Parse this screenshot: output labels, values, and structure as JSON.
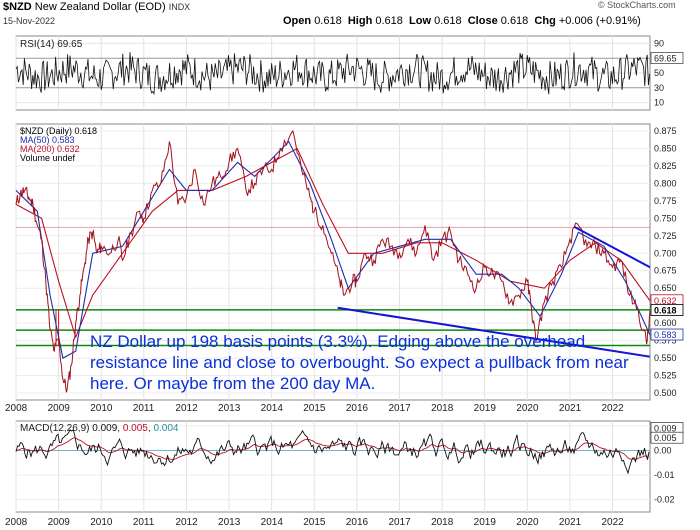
{
  "header": {
    "symbol": "$NZD",
    "name": "New Zealand Dollar (EOD)",
    "exchange": "INDX",
    "date": "15-Nov-2022",
    "open_label": "Open",
    "open": "0.618",
    "high_label": "High",
    "high": "0.618",
    "low_label": "Low",
    "low": "0.618",
    "close_label": "Close",
    "close": "0.618",
    "chg_label": "Chg",
    "chg": "+0.006 (+0.91%)",
    "watermark": "© StockCharts.com"
  },
  "rsi_panel": {
    "legend": "RSI(14) 69.65",
    "value_tag": "69.65",
    "ticks": [
      "90",
      "70",
      "50",
      "30",
      "10"
    ]
  },
  "price_panel": {
    "legend": [
      {
        "text": "$NZD (Daily) 0.618",
        "color": "#000000"
      },
      {
        "text": "MA(50) 0.583",
        "color": "#1a2fb0"
      },
      {
        "text": "MA(200) 0.632",
        "color": "#c0102a"
      },
      {
        "text": "Volume undef",
        "color": "#000000"
      }
    ],
    "ticks": [
      "0.875",
      "0.850",
      "0.825",
      "0.800",
      "0.775",
      "0.750",
      "0.725",
      "0.700",
      "0.675",
      "0.650",
      "0.625",
      "0.600",
      "0.575",
      "0.550",
      "0.525",
      "0.500"
    ],
    "tags": {
      "ma200": "0.632",
      "price": "0.618",
      "ma50": "0.583"
    }
  },
  "annotation": "NZ Dollar up 198 basis points (3.3%). Edging above the overhead resistance line and close to overbought. So expect a pullback from near here. Or maybe from the 200 day MA.",
  "macd_panel": {
    "legend_prefix": "MACD(12,26,9)",
    "macd_value": "0.009",
    "signal_value": "0.005",
    "hist_value": "0.004",
    "ticks": [
      "0.01",
      "0.00",
      "-0.01",
      "-0.02"
    ],
    "tags": {
      "macd": "0.009",
      "signal": "0.005"
    }
  },
  "x_axis_labels": [
    "2008",
    "2009",
    "2010",
    "2011",
    "2012",
    "2013",
    "2014",
    "2015",
    "2016",
    "2017",
    "2018",
    "2019",
    "2020",
    "2021",
    "2022"
  ],
  "colors": {
    "price": "#a0101c",
    "ma50": "#1a2fb0",
    "ma200": "#c0102a",
    "support": "#0a8a0a",
    "trendline": "#1414d8",
    "annotation": "#0b2fd8"
  },
  "chart_data": [
    {
      "type": "line",
      "title": "RSI(14)",
      "ylim": [
        0,
        100
      ],
      "series": [
        {
          "name": "RSI(14)",
          "values": [
            69.65
          ]
        }
      ]
    },
    {
      "type": "line",
      "title": "$NZD (Daily)",
      "x_unit": "year",
      "ylim": [
        0.49,
        0.885
      ],
      "series": [
        {
          "name": "$NZD (Daily)",
          "color": "#a0101c",
          "points": [
            [
              2008.0,
              0.77
            ],
            [
              2008.1,
              0.785
            ],
            [
              2008.2,
              0.79
            ],
            [
              2008.3,
              0.78
            ],
            [
              2008.4,
              0.77
            ],
            [
              2008.5,
              0.74
            ],
            [
              2008.6,
              0.72
            ],
            [
              2008.7,
              0.66
            ],
            [
              2008.8,
              0.59
            ],
            [
              2008.9,
              0.56
            ],
            [
              2009.0,
              0.58
            ],
            [
              2009.1,
              0.52
            ],
            [
              2009.2,
              0.505
            ],
            [
              2009.3,
              0.54
            ],
            [
              2009.4,
              0.6
            ],
            [
              2009.5,
              0.64
            ],
            [
              2009.6,
              0.68
            ],
            [
              2009.7,
              0.72
            ],
            [
              2009.8,
              0.73
            ],
            [
              2009.9,
              0.7
            ],
            [
              2010.0,
              0.71
            ],
            [
              2010.2,
              0.7
            ],
            [
              2010.4,
              0.72
            ],
            [
              2010.5,
              0.69
            ],
            [
              2010.7,
              0.73
            ],
            [
              2010.9,
              0.76
            ],
            [
              2011.0,
              0.75
            ],
            [
              2011.2,
              0.79
            ],
            [
              2011.4,
              0.8
            ],
            [
              2011.6,
              0.86
            ],
            [
              2011.8,
              0.77
            ],
            [
              2012.0,
              0.78
            ],
            [
              2012.2,
              0.82
            ],
            [
              2012.4,
              0.77
            ],
            [
              2012.6,
              0.8
            ],
            [
              2012.8,
              0.81
            ],
            [
              2013.0,
              0.83
            ],
            [
              2013.2,
              0.85
            ],
            [
              2013.4,
              0.79
            ],
            [
              2013.6,
              0.8
            ],
            [
              2013.8,
              0.82
            ],
            [
              2014.0,
              0.82
            ],
            [
              2014.2,
              0.85
            ],
            [
              2014.5,
              0.875
            ],
            [
              2014.7,
              0.82
            ],
            [
              2014.9,
              0.78
            ],
            [
              2015.0,
              0.76
            ],
            [
              2015.2,
              0.74
            ],
            [
              2015.4,
              0.7
            ],
            [
              2015.6,
              0.66
            ],
            [
              2015.7,
              0.64
            ],
            [
              2015.9,
              0.66
            ],
            [
              2016.0,
              0.66
            ],
            [
              2016.2,
              0.7
            ],
            [
              2016.4,
              0.69
            ],
            [
              2016.6,
              0.72
            ],
            [
              2016.8,
              0.71
            ],
            [
              2017.0,
              0.7
            ],
            [
              2017.2,
              0.72
            ],
            [
              2017.4,
              0.7
            ],
            [
              2017.6,
              0.74
            ],
            [
              2017.8,
              0.69
            ],
            [
              2018.0,
              0.72
            ],
            [
              2018.2,
              0.73
            ],
            [
              2018.4,
              0.69
            ],
            [
              2018.6,
              0.67
            ],
            [
              2018.8,
              0.65
            ],
            [
              2019.0,
              0.68
            ],
            [
              2019.2,
              0.67
            ],
            [
              2019.4,
              0.66
            ],
            [
              2019.6,
              0.63
            ],
            [
              2019.8,
              0.64
            ],
            [
              2020.0,
              0.66
            ],
            [
              2020.1,
              0.62
            ],
            [
              2020.2,
              0.575
            ],
            [
              2020.4,
              0.63
            ],
            [
              2020.6,
              0.66
            ],
            [
              2020.8,
              0.68
            ],
            [
              2021.0,
              0.72
            ],
            [
              2021.2,
              0.74
            ],
            [
              2021.4,
              0.71
            ],
            [
              2021.6,
              0.71
            ],
            [
              2021.8,
              0.7
            ],
            [
              2022.0,
              0.68
            ],
            [
              2022.2,
              0.69
            ],
            [
              2022.4,
              0.64
            ],
            [
              2022.6,
              0.62
            ],
            [
              2022.8,
              0.57
            ],
            [
              2022.88,
              0.618
            ]
          ]
        },
        {
          "name": "MA(50)",
          "color": "#1a2fb0",
          "points": [
            [
              2008.0,
              0.79
            ],
            [
              2008.5,
              0.76
            ],
            [
              2008.8,
              0.64
            ],
            [
              2009.1,
              0.55
            ],
            [
              2009.4,
              0.56
            ],
            [
              2009.8,
              0.7
            ],
            [
              2010.5,
              0.71
            ],
            [
              2011.0,
              0.76
            ],
            [
              2011.6,
              0.82
            ],
            [
              2012.0,
              0.79
            ],
            [
              2012.6,
              0.79
            ],
            [
              2013.2,
              0.83
            ],
            [
              2013.6,
              0.81
            ],
            [
              2014.4,
              0.86
            ],
            [
              2014.9,
              0.8
            ],
            [
              2015.4,
              0.72
            ],
            [
              2015.8,
              0.65
            ],
            [
              2016.4,
              0.7
            ],
            [
              2017.0,
              0.71
            ],
            [
              2017.6,
              0.72
            ],
            [
              2018.2,
              0.72
            ],
            [
              2018.8,
              0.67
            ],
            [
              2019.4,
              0.67
            ],
            [
              2019.8,
              0.65
            ],
            [
              2020.3,
              0.61
            ],
            [
              2020.8,
              0.67
            ],
            [
              2021.2,
              0.73
            ],
            [
              2021.8,
              0.71
            ],
            [
              2022.3,
              0.66
            ],
            [
              2022.88,
              0.583
            ]
          ]
        },
        {
          "name": "MA(200)",
          "color": "#c0102a",
          "points": [
            [
              2008.0,
              0.77
            ],
            [
              2008.6,
              0.75
            ],
            [
              2009.0,
              0.66
            ],
            [
              2009.4,
              0.58
            ],
            [
              2009.8,
              0.64
            ],
            [
              2010.5,
              0.7
            ],
            [
              2011.2,
              0.76
            ],
            [
              2011.8,
              0.79
            ],
            [
              2012.6,
              0.79
            ],
            [
              2013.4,
              0.81
            ],
            [
              2014.0,
              0.83
            ],
            [
              2014.6,
              0.85
            ],
            [
              2015.2,
              0.77
            ],
            [
              2015.8,
              0.7
            ],
            [
              2016.6,
              0.7
            ],
            [
              2017.4,
              0.715
            ],
            [
              2018.0,
              0.715
            ],
            [
              2018.8,
              0.69
            ],
            [
              2019.6,
              0.66
            ],
            [
              2020.4,
              0.65
            ],
            [
              2021.0,
              0.69
            ],
            [
              2021.6,
              0.715
            ],
            [
              2022.2,
              0.69
            ],
            [
              2022.88,
              0.632
            ]
          ]
        }
      ]
    },
    {
      "type": "line",
      "title": "MACD(12,26,9)",
      "ylim": [
        -0.025,
        0.012
      ],
      "series": [
        {
          "name": "MACD",
          "values": [
            0.009
          ]
        },
        {
          "name": "Signal",
          "values": [
            0.005
          ]
        },
        {
          "name": "Histogram",
          "values": [
            0.004
          ]
        }
      ]
    }
  ]
}
